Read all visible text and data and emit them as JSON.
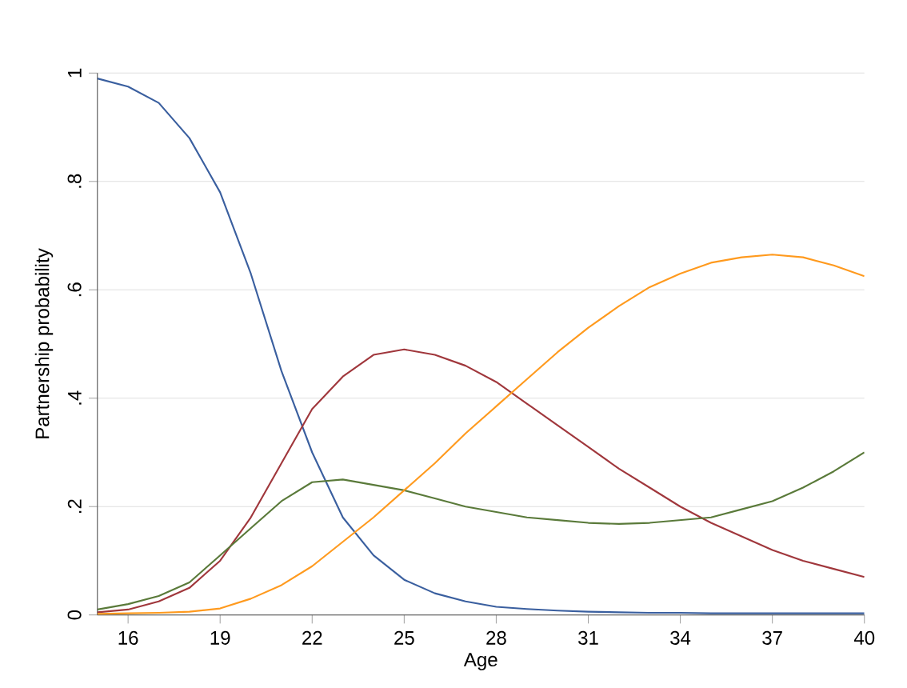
{
  "chart_data": {
    "type": "line",
    "xlabel": "Age",
    "ylabel": "Partnership probability",
    "x": [
      15,
      16,
      17,
      18,
      19,
      20,
      21,
      22,
      23,
      24,
      25,
      26,
      27,
      28,
      29,
      30,
      31,
      32,
      33,
      34,
      35,
      36,
      37,
      38,
      39,
      40
    ],
    "xlim": [
      15,
      40
    ],
    "xticks": [
      16,
      19,
      22,
      25,
      28,
      31,
      34,
      37,
      40
    ],
    "ylim": [
      0,
      1
    ],
    "yticks": [
      {
        "value": 0,
        "label": "0"
      },
      {
        "value": 0.2,
        "label": ".2"
      },
      {
        "value": 0.4,
        "label": ".4"
      },
      {
        "value": 0.6,
        "label": ".6"
      },
      {
        "value": 0.8,
        "label": ".8"
      },
      {
        "value": 1,
        "label": "1"
      }
    ],
    "grid": "y",
    "marker": "none",
    "line_style": "solid",
    "series": [
      {
        "color": "#3a5f9f",
        "values": [
          0.99,
          0.975,
          0.945,
          0.88,
          0.78,
          0.63,
          0.45,
          0.3,
          0.18,
          0.11,
          0.065,
          0.04,
          0.025,
          0.015,
          0.011,
          0.008,
          0.006,
          0.005,
          0.004,
          0.004,
          0.003,
          0.003,
          0.003,
          0.003,
          0.003,
          0.003
        ]
      },
      {
        "color": "#a0373c",
        "values": [
          0.005,
          0.01,
          0.025,
          0.05,
          0.1,
          0.18,
          0.28,
          0.38,
          0.44,
          0.48,
          0.49,
          0.48,
          0.46,
          0.43,
          0.39,
          0.35,
          0.31,
          0.27,
          0.235,
          0.2,
          0.17,
          0.145,
          0.12,
          0.1,
          0.085,
          0.07
        ]
      },
      {
        "color": "#5a7a3a",
        "values": [
          0.01,
          0.02,
          0.035,
          0.06,
          0.11,
          0.16,
          0.21,
          0.245,
          0.25,
          0.24,
          0.23,
          0.215,
          0.2,
          0.19,
          0.18,
          0.175,
          0.17,
          0.168,
          0.17,
          0.175,
          0.18,
          0.195,
          0.21,
          0.235,
          0.265,
          0.3
        ]
      },
      {
        "color": "#ff9a1e",
        "values": [
          0.002,
          0.003,
          0.004,
          0.006,
          0.012,
          0.03,
          0.055,
          0.09,
          0.135,
          0.18,
          0.23,
          0.28,
          0.335,
          0.385,
          0.435,
          0.485,
          0.53,
          0.57,
          0.605,
          0.63,
          0.65,
          0.66,
          0.665,
          0.66,
          0.645,
          0.625
        ]
      }
    ]
  }
}
